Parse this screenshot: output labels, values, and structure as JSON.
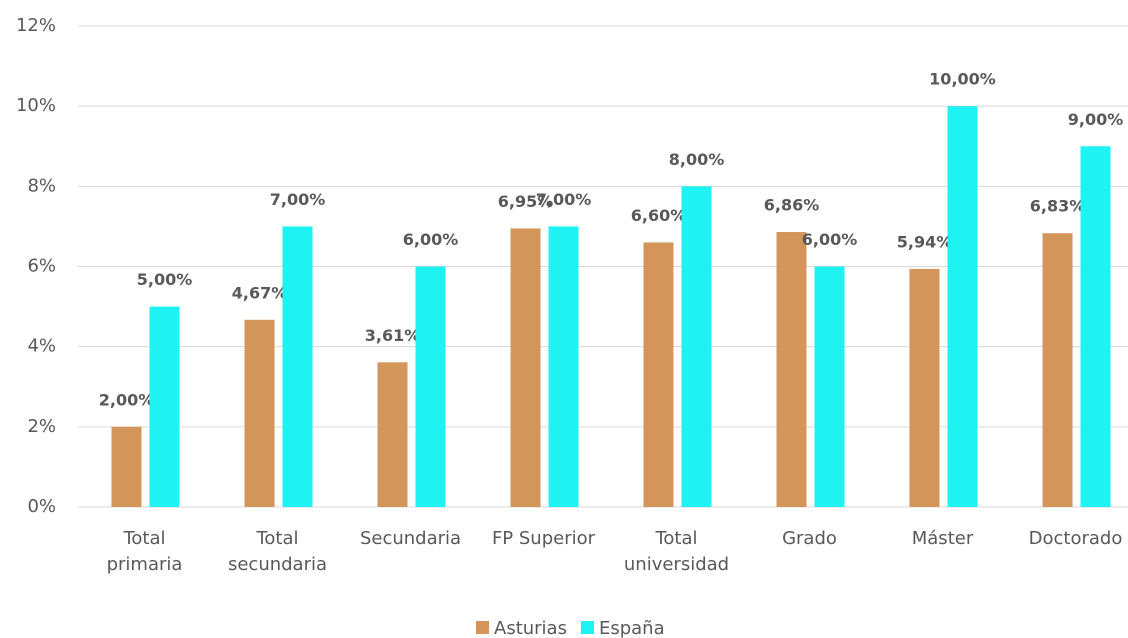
{
  "chart_data": {
    "type": "bar",
    "categories": [
      "Total\nprimaria",
      "Total\nsecundaria",
      "Secundaria",
      "FP Superior",
      "Total\nuniversidad",
      "Grado",
      "Máster",
      "Doctorado"
    ],
    "series": [
      {
        "name": "Asturias",
        "color": "#d4955a",
        "values": [
          2.0,
          4.67,
          3.61,
          6.95,
          6.6,
          6.86,
          5.94,
          6.83
        ],
        "value_labels": [
          "2,00%",
          "4,67%",
          "3,61%",
          "6,95%",
          "6,60%",
          "6,86%",
          "5,94%",
          "6,83%"
        ]
      },
      {
        "name": "España",
        "color": "#1ef2f2",
        "values": [
          5.0,
          7.0,
          6.0,
          7.0,
          8.0,
          6.0,
          10.0,
          9.0
        ],
        "value_labels": [
          "5,00%",
          "7,00%",
          "6,00%",
          "7,00%",
          "8,00%",
          "6,00%",
          "10,00%",
          "9,00%"
        ]
      }
    ],
    "ylim": [
      0,
      12
    ],
    "yticks": [
      {
        "value": 0,
        "label": "0%"
      },
      {
        "value": 2,
        "label": "2%"
      },
      {
        "value": 4,
        "label": "4%"
      },
      {
        "value": 6,
        "label": "6%"
      },
      {
        "value": 8,
        "label": "8%"
      },
      {
        "value": 10,
        "label": "10%"
      },
      {
        "value": 12,
        "label": "12%"
      }
    ],
    "grid": true,
    "legend": "bottom"
  }
}
